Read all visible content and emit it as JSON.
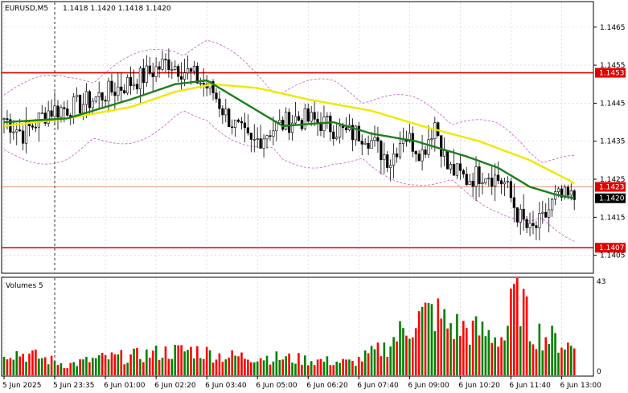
{
  "header": {
    "symbol": "EURUSD,M5",
    "ohlc": "1.1418 1.1420 1.1418 1.1420"
  },
  "volume_panel": {
    "title": "Volumes 5",
    "max_label": "43",
    "min_label": "0"
  },
  "colors": {
    "bull": "#008000",
    "bear": "#ff0000",
    "price_candle": "#000000",
    "ma_fast": "#1a7f1a",
    "ma_slow": "#f0e800",
    "bands": "#c060c0",
    "level_line": "#e00000",
    "grid": "#c8c8c8",
    "current_tag_bg": "#000000"
  },
  "chart_data": [
    {
      "type": "candlestick",
      "title": "EURUSD,M5",
      "ylim": [
        1.14005,
        1.14715
      ],
      "y_ticks": [
        "1.1465",
        "1.1455",
        "1.1445",
        "1.1435",
        "1.1425",
        "1.1415",
        "1.1405"
      ],
      "x_ticks": [
        "5 Jun 2025",
        "5 Jun 23:35",
        "6 Jun 01:00",
        "6 Jun 02:20",
        "6 Jun 03:40",
        "6 Jun 05:00",
        "6 Jun 06:20",
        "6 Jun 07:40",
        "6 Jun 09:00",
        "6 Jun 10:20",
        "6 Jun 11:40",
        "6 Jun 13:00"
      ],
      "levels": [
        {
          "label": "1.1453",
          "value": 1.1453,
          "style": "red-line"
        },
        {
          "label": "1.1423",
          "value": 1.1423,
          "style": "thin-line"
        },
        {
          "label": "1.1407",
          "value": 1.1407,
          "style": "red-line"
        }
      ],
      "current_price": {
        "label": "1.1420",
        "value": 1.142
      },
      "vertical_marker_x": "5 Jun 23:35",
      "close_anchors": [
        [
          0,
          1.1441
        ],
        [
          6,
          1.1437
        ],
        [
          14,
          1.1443
        ],
        [
          22,
          1.1444
        ],
        [
          28,
          1.1446
        ],
        [
          36,
          1.1449
        ],
        [
          44,
          1.1452
        ],
        [
          52,
          1.1456
        ],
        [
          60,
          1.1452
        ],
        [
          66,
          1.1448
        ],
        [
          70,
          1.1442
        ],
        [
          74,
          1.1438
        ],
        [
          78,
          1.1434
        ],
        [
          84,
          1.1438
        ],
        [
          92,
          1.1441
        ],
        [
          100,
          1.144
        ],
        [
          108,
          1.1437
        ],
        [
          114,
          1.1437
        ],
        [
          118,
          1.1433
        ],
        [
          122,
          1.143
        ],
        [
          126,
          1.1437
        ],
        [
          132,
          1.1432
        ],
        [
          136,
          1.144
        ],
        [
          140,
          1.1428
        ],
        [
          146,
          1.1425
        ],
        [
          152,
          1.1427
        ],
        [
          158,
          1.1424
        ],
        [
          162,
          1.1416
        ],
        [
          166,
          1.1411
        ],
        [
          170,
          1.1414
        ],
        [
          174,
          1.142
        ],
        [
          180,
          1.142
        ]
      ],
      "ma_fast_anchors": [
        [
          0,
          1.144
        ],
        [
          20,
          1.1441
        ],
        [
          40,
          1.1446
        ],
        [
          54,
          1.145
        ],
        [
          64,
          1.1451
        ],
        [
          74,
          1.1446
        ],
        [
          88,
          1.1439
        ],
        [
          104,
          1.144
        ],
        [
          116,
          1.1437
        ],
        [
          130,
          1.1435
        ],
        [
          146,
          1.1431
        ],
        [
          156,
          1.1428
        ],
        [
          166,
          1.1423
        ],
        [
          174,
          1.1421
        ],
        [
          180,
          1.142
        ]
      ],
      "ma_slow_anchors": [
        [
          0,
          1.1439
        ],
        [
          20,
          1.1441
        ],
        [
          40,
          1.1444
        ],
        [
          54,
          1.1448
        ],
        [
          66,
          1.145
        ],
        [
          80,
          1.1449
        ],
        [
          96,
          1.1446
        ],
        [
          116,
          1.1443
        ],
        [
          132,
          1.1439
        ],
        [
          150,
          1.1435
        ],
        [
          166,
          1.143
        ],
        [
          180,
          1.1424
        ]
      ],
      "band_width": 0.0009
    },
    {
      "type": "bar",
      "title": "Volumes 5",
      "ylim": [
        0,
        43
      ],
      "volume_anchors": [
        [
          0,
          12
        ],
        [
          10,
          9
        ],
        [
          20,
          5
        ],
        [
          30,
          8
        ],
        [
          40,
          9
        ],
        [
          50,
          11
        ],
        [
          60,
          12
        ],
        [
          70,
          9
        ],
        [
          80,
          9
        ],
        [
          90,
          8
        ],
        [
          100,
          7
        ],
        [
          110,
          6
        ],
        [
          120,
          13
        ],
        [
          130,
          27
        ],
        [
          136,
          30
        ],
        [
          140,
          24
        ],
        [
          146,
          22
        ],
        [
          152,
          20
        ],
        [
          158,
          18
        ],
        [
          162,
          43
        ],
        [
          166,
          22
        ],
        [
          172,
          18
        ],
        [
          180,
          13
        ]
      ]
    }
  ]
}
